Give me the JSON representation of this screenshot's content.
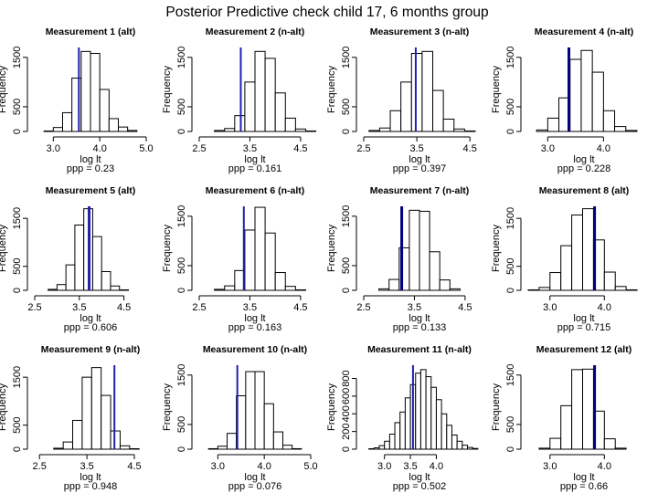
{
  "title": "Posterior Predictive check child 17, 6 months group",
  "chart_data": [
    {
      "type": "bar",
      "title": "Measurement  1 (alt)",
      "xlabel": "log lt",
      "ylabel": "Frequency",
      "ppp_label": "ppp = 0.23",
      "ppp": 0.23,
      "observed": 3.55,
      "line_color": "#2020b0",
      "line_weight": "thin",
      "binwidth": 0.2,
      "bin_start": 2.8,
      "counts": [
        10,
        80,
        380,
        1080,
        1620,
        1580,
        850,
        260,
        90,
        20
      ],
      "xlim": [
        2.6,
        5.0
      ],
      "ylim": [
        0,
        1700
      ],
      "xticks": [
        3.0,
        4.0,
        5.0
      ],
      "xtick_labels": [
        "3.0",
        "4.0",
        "5.0"
      ],
      "yticks": [
        0,
        500,
        1500
      ],
      "ytick_labels": [
        "0",
        "500",
        "1500"
      ]
    },
    {
      "type": "bar",
      "title": "Measurement  2 (n-alt)",
      "xlabel": "log lt",
      "ylabel": "Frequency",
      "ppp_label": "ppp = 0.161",
      "ppp": 0.161,
      "observed": 3.32,
      "line_color": "#2020b0",
      "line_weight": "thin",
      "binwidth": 0.2,
      "bin_start": 2.8,
      "counts": [
        20,
        60,
        320,
        1000,
        1620,
        1480,
        780,
        270,
        50,
        10
      ],
      "xlim": [
        2.5,
        4.7
      ],
      "ylim": [
        0,
        1700
      ],
      "xticks": [
        2.5,
        3.5,
        4.5
      ],
      "xtick_labels": [
        "2.5",
        "3.5",
        "4.5"
      ],
      "yticks": [
        0,
        500,
        1500
      ],
      "ytick_labels": [
        "0",
        "500",
        "1500"
      ]
    },
    {
      "type": "bar",
      "title": "Measurement  3 (n-alt)",
      "xlabel": "log lt",
      "ylabel": "Frequency",
      "ppp_label": "ppp = 0.397",
      "ppp": 0.397,
      "observed": 3.48,
      "line_color": "#2020b0",
      "line_weight": "thin",
      "binwidth": 0.2,
      "bin_start": 2.6,
      "counts": [
        20,
        70,
        420,
        1000,
        1580,
        1620,
        830,
        250,
        50,
        10
      ],
      "xlim": [
        2.5,
        4.6
      ],
      "ylim": [
        0,
        1700
      ],
      "xticks": [
        2.5,
        3.5,
        4.5
      ],
      "xtick_labels": [
        "2.5",
        "3.5",
        "4.5"
      ],
      "yticks": [
        0,
        500,
        1500
      ],
      "ytick_labels": [
        "0",
        "500",
        "1500"
      ]
    },
    {
      "type": "bar",
      "title": "Measurement  4 (n-alt)",
      "xlabel": "log lt",
      "ylabel": "Frequency",
      "ppp_label": "ppp = 0.228",
      "ppp": 0.228,
      "observed": 3.38,
      "line_color": "#000080",
      "line_weight": "thick",
      "binwidth": 0.2,
      "bin_start": 2.8,
      "counts": [
        30,
        270,
        680,
        1460,
        1640,
        1200,
        420,
        100,
        20
      ],
      "xlim": [
        2.65,
        4.65
      ],
      "ylim": [
        0,
        1700
      ],
      "xticks": [
        3.0,
        4.0
      ],
      "xtick_labels": [
        "3.0",
        "4.0"
      ],
      "yticks": [
        0,
        500,
        1500
      ],
      "ytick_labels": [
        "0",
        "500",
        "1500"
      ]
    },
    {
      "type": "bar",
      "title": "Measurement  5 (alt)",
      "xlabel": "log lt",
      "ylabel": "Frequency",
      "ppp_label": "ppp = 0.606",
      "ppp": 0.606,
      "observed": 3.72,
      "line_color": "#2020b0",
      "line_weight": "thick",
      "binwidth": 0.2,
      "bin_start": 2.8,
      "counts": [
        20,
        120,
        530,
        1360,
        1700,
        1120,
        390,
        90,
        10
      ],
      "xlim": [
        2.5,
        5.0
      ],
      "ylim": [
        0,
        1750
      ],
      "xticks": [
        2.5,
        3.5,
        4.5
      ],
      "xtick_labels": [
        "2.5",
        "3.5",
        "4.5"
      ],
      "yticks": [
        0,
        500,
        1500
      ],
      "ytick_labels": [
        "0",
        "500",
        "1500"
      ]
    },
    {
      "type": "bar",
      "title": "Measurement  6 (n-alt)",
      "xlabel": "log lt",
      "ylabel": "Frequency",
      "ppp_label": "ppp = 0.163",
      "ppp": 0.163,
      "observed": 3.38,
      "line_color": "#2020b0",
      "line_weight": "thin",
      "binwidth": 0.2,
      "bin_start": 2.8,
      "counts": [
        20,
        90,
        400,
        1220,
        1680,
        1160,
        360,
        80,
        10
      ],
      "xlim": [
        2.5,
        4.7
      ],
      "ylim": [
        0,
        1700
      ],
      "xticks": [
        2.5,
        3.5,
        4.5
      ],
      "xtick_labels": [
        "2.5",
        "3.5",
        "4.5"
      ],
      "yticks": [
        0,
        500,
        1500
      ],
      "ytick_labels": [
        "0",
        "500",
        "1500"
      ]
    },
    {
      "type": "bar",
      "title": "Measurement  7 (n-alt)",
      "xlabel": "log lt",
      "ylabel": "Frequency",
      "ppp_label": "ppp = 0.133",
      "ppp": 0.133,
      "observed": 3.25,
      "line_color": "#000080",
      "line_weight": "thick",
      "binwidth": 0.2,
      "bin_start": 2.8,
      "counts": [
        30,
        220,
        860,
        1620,
        1600,
        780,
        210,
        30
      ],
      "xlim": [
        2.5,
        4.7
      ],
      "ylim": [
        0,
        1700
      ],
      "xticks": [
        2.5,
        3.5,
        4.5
      ],
      "xtick_labels": [
        "2.5",
        "3.5",
        "4.5"
      ],
      "yticks": [
        0,
        500,
        1500
      ],
      "ytick_labels": [
        "0",
        "500",
        "1500"
      ]
    },
    {
      "type": "bar",
      "title": "Measurement  8 (alt)",
      "xlabel": "log lt",
      "ylabel": "Frequency",
      "ppp_label": "ppp = 0.715",
      "ppp": 0.715,
      "observed": 3.82,
      "line_color": "#000080",
      "line_weight": "thick",
      "binwidth": 0.2,
      "bin_start": 2.6,
      "counts": [
        10,
        60,
        370,
        930,
        1570,
        1700,
        1050,
        380,
        80,
        10
      ],
      "xlim": [
        2.6,
        4.65
      ],
      "ylim": [
        0,
        1750
      ],
      "xticks": [
        3.0,
        4.0
      ],
      "xtick_labels": [
        "3.0",
        "4.0"
      ],
      "yticks": [
        0,
        500,
        1500
      ],
      "ytick_labels": [
        "0",
        "500",
        "1500"
      ]
    },
    {
      "type": "bar",
      "title": "Measurement  9 (n-alt)",
      "xlabel": "log lt",
      "ylabel": "Frequency",
      "ppp_label": "ppp = 0.948",
      "ppp": 0.948,
      "observed": 4.08,
      "line_color": "#2020b0",
      "line_weight": "thin",
      "binwidth": 0.2,
      "bin_start": 2.8,
      "counts": [
        20,
        150,
        600,
        1500,
        1700,
        1120,
        380,
        70,
        10
      ],
      "xlim": [
        2.4,
        4.75
      ],
      "ylim": [
        0,
        1750
      ],
      "xticks": [
        2.5,
        3.5,
        4.5
      ],
      "xtick_labels": [
        "2.5",
        "3.5",
        "4.5"
      ],
      "yticks": [
        0,
        500,
        1500
      ],
      "ytick_labels": [
        "0",
        "500",
        "1500"
      ]
    },
    {
      "type": "bar",
      "title": "Measurement  10 (n-alt)",
      "xlabel": "log lt",
      "ylabel": "Frequency",
      "ppp_label": "ppp = 0.076",
      "ppp": 0.076,
      "observed": 3.42,
      "line_color": "#2020b0",
      "line_weight": "thin",
      "binwidth": 0.2,
      "bin_start": 2.8,
      "counts": [
        10,
        60,
        320,
        1080,
        1570,
        1570,
        920,
        350,
        80,
        10
      ],
      "xlim": [
        2.6,
        5.0
      ],
      "ylim": [
        0,
        1700
      ],
      "xticks": [
        3.0,
        4.0,
        5.0
      ],
      "xtick_labels": [
        "3.0",
        "4.0",
        "5.0"
      ],
      "yticks": [
        0,
        500,
        1500
      ],
      "ytick_labels": [
        "0",
        "500",
        "1500"
      ]
    },
    {
      "type": "bar",
      "title": "Measurement  11 (n-alt)",
      "xlabel": "log lt",
      "ylabel": "Frequency",
      "ppp_label": "ppp = 0.502",
      "ppp": 0.502,
      "observed": 3.55,
      "line_color": "#2020b0",
      "line_weight": "thin",
      "binwidth": 0.1,
      "bin_start": 2.7,
      "counts": [
        5,
        15,
        40,
        90,
        170,
        300,
        420,
        580,
        730,
        860,
        900,
        820,
        700,
        560,
        400,
        270,
        160,
        90,
        45,
        20,
        8
      ],
      "xlim": [
        2.6,
        4.75
      ],
      "ylim": [
        0,
        950
      ],
      "xticks": [
        3.0,
        3.5,
        4.0
      ],
      "xtick_labels": [
        "3.0",
        "3.5",
        "4.0"
      ],
      "yticks": [
        0,
        200,
        400,
        600,
        800
      ],
      "ytick_labels": [
        "0",
        "200",
        "400",
        "600",
        "800"
      ]
    },
    {
      "type": "bar",
      "title": "Measurement  12 (alt)",
      "xlabel": "log lt",
      "ylabel": "Frequency",
      "ppp_label": "ppp = 0.66",
      "ppp": 0.66,
      "observed": 3.82,
      "line_color": "#000080",
      "line_weight": "thick",
      "binwidth": 0.2,
      "bin_start": 2.8,
      "counts": [
        20,
        220,
        880,
        1610,
        1620,
        770,
        210,
        20
      ],
      "xlim": [
        2.6,
        4.65
      ],
      "ylim": [
        0,
        1700
      ],
      "xticks": [
        3.0,
        4.0
      ],
      "xtick_labels": [
        "3.0",
        "4.0"
      ],
      "yticks": [
        0,
        500,
        1500
      ],
      "ytick_labels": [
        "0",
        "500",
        "1500"
      ]
    }
  ]
}
